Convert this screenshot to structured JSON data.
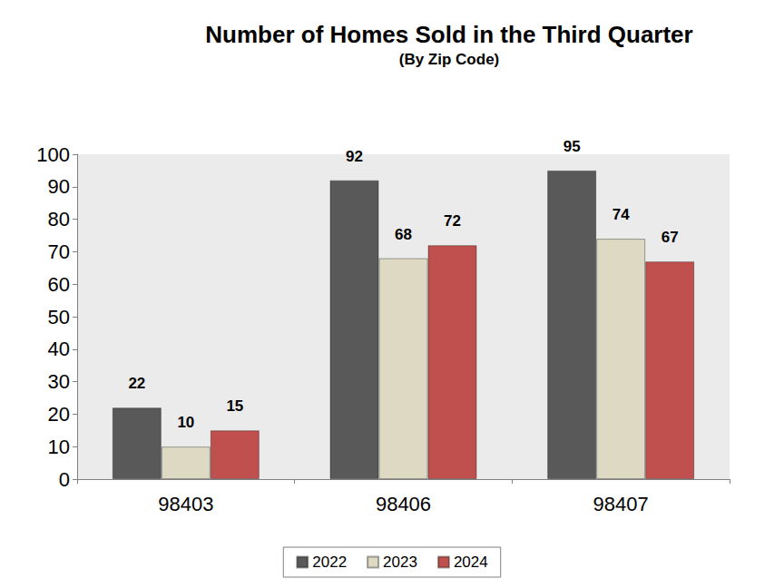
{
  "chart_data": {
    "type": "bar",
    "title": "Number of Homes Sold in the Third Quarter",
    "subtitle": "(By Zip Code)",
    "categories": [
      "98403",
      "98406",
      "98407"
    ],
    "series": [
      {
        "name": "2022",
        "color": "#595959",
        "values": [
          22,
          92,
          95
        ]
      },
      {
        "name": "2023",
        "color": "#ddd9c3",
        "values": [
          10,
          68,
          74
        ]
      },
      {
        "name": "2024",
        "color": "#c0504d",
        "values": [
          15,
          72,
          67
        ]
      }
    ],
    "ylim": [
      0,
      100
    ],
    "yticks": [
      0,
      10,
      20,
      30,
      40,
      50,
      60,
      70,
      80,
      90,
      100
    ],
    "grid": false,
    "legend": "bottom",
    "data_labels": true
  }
}
